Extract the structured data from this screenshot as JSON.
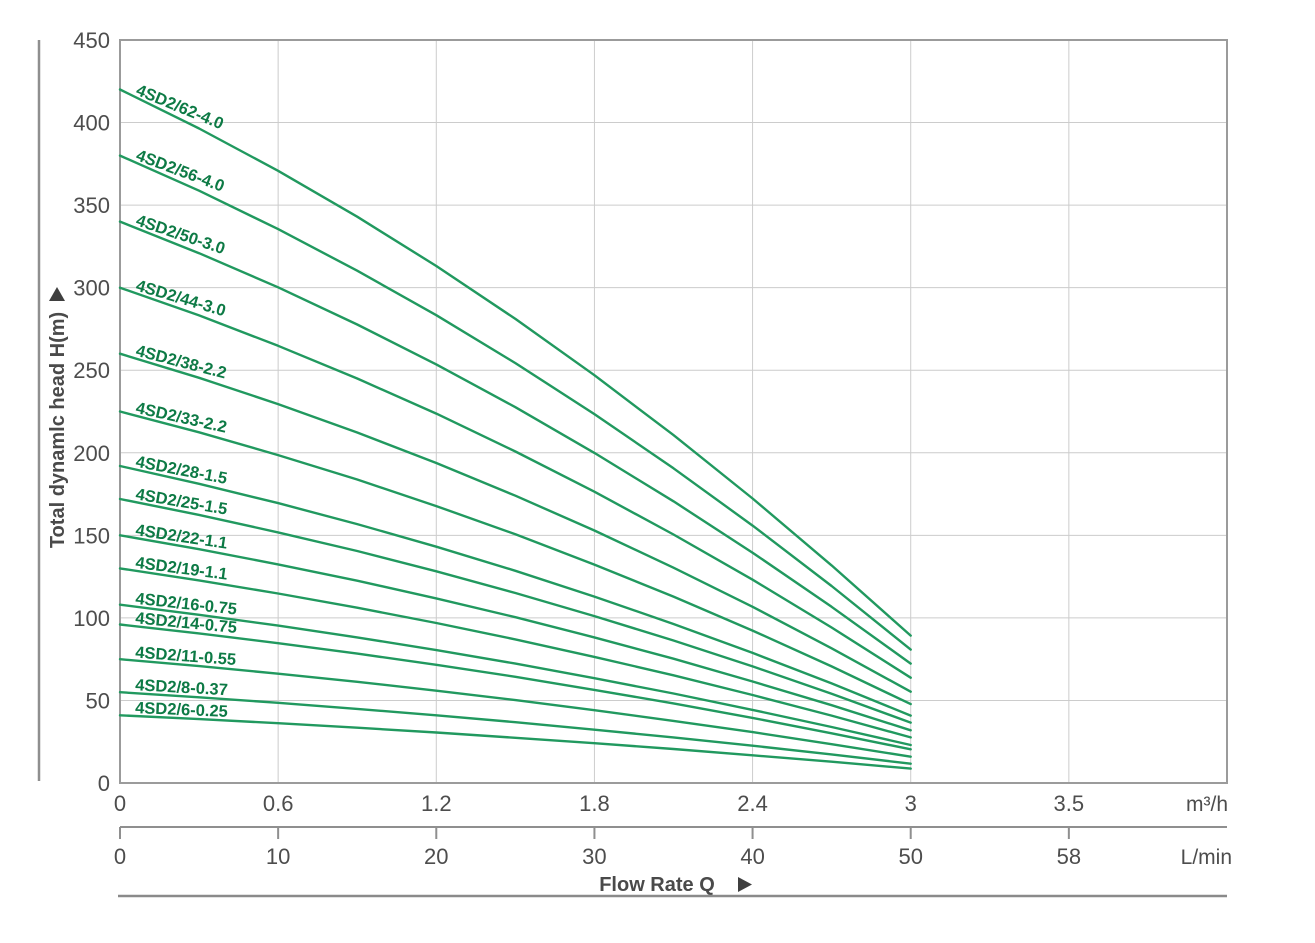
{
  "colors": {
    "curve": "#21995f",
    "curve_label": "#0d7a45",
    "grid": "#cccccc",
    "axis": "#8f8f8f",
    "text": "#4d4d4d"
  },
  "chart_data": {
    "type": "line",
    "ylabel": "Total dynamlc head H(m)",
    "xlabel": "Flow Rate Q",
    "x_unit_top": "m³/h",
    "x_unit_bottom": "L/min",
    "y_ticks": [
      "450",
      "400",
      "350",
      "300",
      "250",
      "200",
      "150",
      "100",
      "50",
      "0"
    ],
    "x_ticks_m3h": [
      "0",
      "0.6",
      "1.2",
      "1.8",
      "2.4",
      "3",
      "3.5"
    ],
    "x_ticks_lmin": [
      "0",
      "10",
      "20",
      "30",
      "40",
      "50",
      "58"
    ],
    "ylim": [
      0,
      450
    ],
    "xlim_m3h": [
      0,
      4.2
    ],
    "grid": true,
    "legend_position": "on-curve-labels",
    "q_m3h": [
      0,
      0.3,
      0.6,
      0.9,
      1.2,
      1.5,
      1.8,
      2.1,
      2.4,
      2.7,
      3.0
    ],
    "series": [
      {
        "name": "4SD2/62-4.0",
        "heads": [
          420,
          396.4,
          370.8,
          343.0,
          313.1,
          281.1,
          247.0,
          210.7,
          172.3,
          131.8,
          89.3
        ]
      },
      {
        "name": "4SD2/56-4.0",
        "heads": [
          380,
          358.7,
          335.5,
          310.3,
          283.3,
          254.3,
          223.4,
          190.6,
          155.9,
          119.3,
          80.8
        ]
      },
      {
        "name": "4SD2/50-3.0",
        "heads": [
          340,
          320.9,
          300.2,
          277.7,
          253.5,
          227.6,
          199.9,
          170.6,
          139.5,
          106.7,
          72.3
        ]
      },
      {
        "name": "4SD2/44-3.0",
        "heads": [
          300,
          283.2,
          264.8,
          245.0,
          223.7,
          200.8,
          176.4,
          150.5,
          123.1,
          94.2,
          63.8
        ]
      },
      {
        "name": "4SD2/38-2.2",
        "heads": [
          260,
          245.4,
          229.5,
          212.3,
          193.8,
          174.0,
          152.9,
          130.4,
          106.7,
          81.6,
          55.3
        ]
      },
      {
        "name": "4SD2/33-2.2",
        "heads": [
          225,
          212.4,
          198.6,
          183.8,
          167.7,
          150.6,
          132.3,
          112.9,
          92.3,
          70.6,
          47.8
        ]
      },
      {
        "name": "4SD2/28-1.5",
        "heads": [
          192,
          181.2,
          169.5,
          156.8,
          143.1,
          128.5,
          112.9,
          96.3,
          78.8,
          60.3,
          40.8
        ]
      },
      {
        "name": "4SD2/25-1.5",
        "heads": [
          172,
          162.4,
          151.8,
          140.5,
          128.2,
          115.1,
          101.1,
          86.3,
          70.6,
          54.0,
          36.6
        ]
      },
      {
        "name": "4SD2/22-1.1",
        "heads": [
          150,
          141.6,
          132.4,
          122.5,
          111.8,
          100.4,
          88.2,
          75.3,
          61.5,
          47.1,
          31.9
        ]
      },
      {
        "name": "4SD2/19-1.1",
        "heads": [
          130,
          122.7,
          114.8,
          106.2,
          96.9,
          87.0,
          76.4,
          65.2,
          53.3,
          40.8,
          27.6
        ]
      },
      {
        "name": "4SD2/16-0.75",
        "heads": [
          108,
          101.9,
          95.3,
          88.2,
          80.5,
          72.3,
          63.5,
          54.2,
          44.3,
          33.9,
          23.0
        ]
      },
      {
        "name": "4SD2/14-0.75",
        "heads": [
          96,
          90.6,
          84.7,
          78.4,
          71.6,
          64.3,
          56.4,
          48.2,
          39.4,
          30.1,
          20.4
        ]
      },
      {
        "name": "4SD2/11-0.55",
        "heads": [
          75,
          70.8,
          66.2,
          61.3,
          55.9,
          50.2,
          44.1,
          37.6,
          30.8,
          23.5,
          15.9
        ]
      },
      {
        "name": "4SD2/8-0.37",
        "heads": [
          55,
          51.9,
          48.6,
          44.9,
          41.0,
          36.8,
          32.3,
          27.6,
          22.6,
          17.3,
          11.7
        ]
      },
      {
        "name": "4SD2/6-0.25",
        "heads": [
          41,
          38.7,
          36.2,
          33.5,
          30.6,
          27.4,
          24.1,
          20.6,
          16.8,
          12.9,
          8.7
        ]
      }
    ]
  }
}
